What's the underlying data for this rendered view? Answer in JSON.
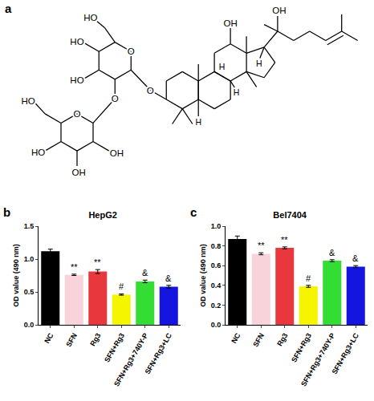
{
  "panel_labels": [
    "a",
    "b",
    "c"
  ],
  "structure": {
    "atom_labels": [
      "HO",
      "O",
      "HO",
      "HO",
      "O",
      "O",
      "O",
      "HO",
      "HO",
      "OH",
      "OH",
      "OH",
      "OH",
      "H",
      "H",
      "H",
      "H"
    ]
  },
  "chart_data": [
    {
      "type": "bar",
      "title": "HepG2",
      "y_label": "OD value (490 nm)",
      "categories": [
        "NC",
        "SFN",
        "Rg3",
        "SFN+Rg3",
        "SFN+Rg3+740Y-P",
        "SFN+Rg3+LC"
      ],
      "values": [
        1.12,
        0.76,
        0.81,
        0.46,
        0.66,
        0.58
      ],
      "errors": [
        0.03,
        0.01,
        0.03,
        0.01,
        0.02,
        0.02
      ],
      "colors": [
        "#000000",
        "#f9d3da",
        "#e8383d",
        "#f5f500",
        "#33dd33",
        "#1515e0"
      ],
      "significance": [
        null,
        "**",
        "**",
        "#",
        "&",
        "&"
      ],
      "ylim": [
        0,
        1.5
      ],
      "yticks": [
        {
          "value": 0,
          "label": "0.0"
        },
        0.5,
        {
          "value": 1,
          "label": "1.0"
        },
        1.5
      ],
      "grid": false
    },
    {
      "type": "bar",
      "title": "Bel7404",
      "y_label": "OD value (490 nm)",
      "categories": [
        "NC",
        "SFN",
        "Rg3",
        "SFN+Rg3",
        "SFN+Rg3+740Y-P",
        "SFN+Rg3+LC"
      ],
      "values": [
        0.87,
        0.72,
        0.78,
        0.39,
        0.65,
        0.59
      ],
      "errors": [
        0.03,
        0.01,
        0.01,
        0.01,
        0.01,
        0.01
      ],
      "colors": [
        "#000000",
        "#f9d3da",
        "#e8383d",
        "#f5f500",
        "#33dd33",
        "#1515e0"
      ],
      "significance": [
        null,
        "**",
        "**",
        "#",
        "&",
        "&"
      ],
      "ylim": [
        0,
        1
      ],
      "yticks": [
        {
          "value": 0,
          "label": "0.0"
        },
        0.2,
        0.4,
        0.6,
        0.8,
        {
          "value": 1,
          "label": "1.0"
        }
      ],
      "grid": false
    }
  ]
}
